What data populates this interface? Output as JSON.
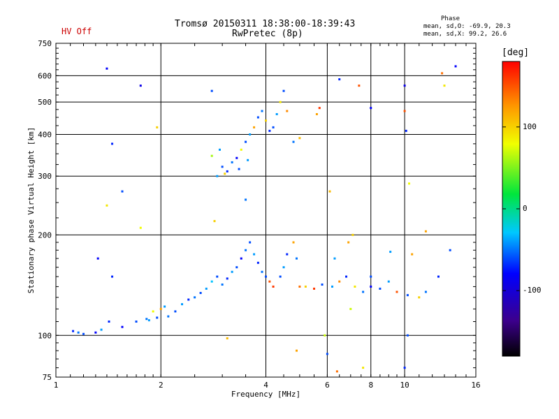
{
  "header": {
    "title_line1": "Tromsø 20150311 18:38:00-18:39:43",
    "title_line2": "RwPretec (8p)",
    "hv_status": "HV Off",
    "phase_title": "Phase",
    "phase_o": "mean, sd,O: -69.9, 20.3",
    "phase_x": "mean, sd,X:  99.2, 26.6"
  },
  "colorbar": {
    "unit": "[deg]",
    "ticks": [
      {
        "label": "100",
        "value": 100
      },
      {
        "label": "0",
        "value": 0
      },
      {
        "label": "-100",
        "value": -100
      }
    ],
    "range": [
      -180,
      180
    ]
  },
  "chart_data": {
    "type": "scatter",
    "xlabel": "Frequency [MHz]",
    "ylabel": "Stationary phase Virtual Height [km]",
    "xscale": "log",
    "yscale": "log",
    "xlim": [
      1,
      16
    ],
    "ylim": [
      75,
      750
    ],
    "xticks": [
      {
        "value": 1,
        "label": "1"
      },
      {
        "value": 2,
        "label": "2"
      },
      {
        "value": 4,
        "label": "4"
      },
      {
        "value": 6,
        "label": "6"
      },
      {
        "value": 8,
        "label": "8"
      },
      {
        "value": 10,
        "label": "10"
      },
      {
        "value": 16,
        "label": "16"
      }
    ],
    "yticks": [
      {
        "value": 75,
        "label": "75"
      },
      {
        "value": 100,
        "label": "100"
      },
      {
        "value": 200,
        "label": "200"
      },
      {
        "value": 300,
        "label": "300"
      },
      {
        "value": 400,
        "label": "400"
      },
      {
        "value": 500,
        "label": "500"
      },
      {
        "value": 600,
        "label": "600"
      },
      {
        "value": 750,
        "label": "750"
      }
    ],
    "xgrid": [
      2,
      4,
      6,
      8,
      10
    ],
    "ygrid": [
      100,
      200,
      300,
      400,
      500,
      600
    ],
    "color_scale": "phase deg, rainbow from black (-180) through blue, cyan, green, yellow to red (180)",
    "points": [
      [
        1.12,
        103,
        -70
      ],
      [
        1.16,
        102,
        -50
      ],
      [
        1.2,
        101,
        -60
      ],
      [
        1.3,
        102,
        -80
      ],
      [
        1.35,
        104,
        -40
      ],
      [
        1.42,
        110,
        -70
      ],
      [
        1.55,
        106,
        -80
      ],
      [
        1.7,
        110,
        -60
      ],
      [
        1.82,
        112,
        -50
      ],
      [
        1.9,
        118,
        80
      ],
      [
        1.85,
        111,
        -40
      ],
      [
        1.95,
        113,
        -60
      ],
      [
        2.0,
        120,
        120
      ],
      [
        2.05,
        122,
        -40
      ],
      [
        2.1,
        114,
        -50
      ],
      [
        2.2,
        118,
        -60
      ],
      [
        2.3,
        124,
        -40
      ],
      [
        2.4,
        128,
        -70
      ],
      [
        2.5,
        130,
        -50
      ],
      [
        2.6,
        134,
        -60
      ],
      [
        2.7,
        138,
        -40
      ],
      [
        2.8,
        145,
        -30
      ],
      [
        2.9,
        150,
        -60
      ],
      [
        3.0,
        142,
        -50
      ],
      [
        3.1,
        148,
        -70
      ],
      [
        3.2,
        155,
        -40
      ],
      [
        3.3,
        160,
        -60
      ],
      [
        3.4,
        170,
        -80
      ],
      [
        3.5,
        180,
        -50
      ],
      [
        3.6,
        190,
        -60
      ],
      [
        3.7,
        175,
        -40
      ],
      [
        3.8,
        165,
        -70
      ],
      [
        3.9,
        155,
        -50
      ],
      [
        4.0,
        150,
        -60
      ],
      [
        4.1,
        145,
        150
      ],
      [
        4.2,
        140,
        160
      ],
      [
        4.4,
        150,
        -60
      ],
      [
        4.5,
        160,
        -40
      ],
      [
        4.6,
        175,
        -70
      ],
      [
        4.8,
        190,
        120
      ],
      [
        4.9,
        170,
        -50
      ],
      [
        5.0,
        140,
        140
      ],
      [
        5.2,
        140,
        100
      ],
      [
        5.5,
        138,
        160
      ],
      [
        5.8,
        142,
        -60
      ],
      [
        6.2,
        140,
        -40
      ],
      [
        6.5,
        145,
        130
      ],
      [
        6.8,
        150,
        -70
      ],
      [
        7.2,
        140,
        90
      ],
      [
        7.6,
        135,
        -50
      ],
      [
        8.0,
        140,
        -80
      ],
      [
        8.5,
        138,
        -60
      ],
      [
        9.0,
        145,
        -40
      ],
      [
        9.5,
        135,
        150
      ],
      [
        10.2,
        132,
        -60
      ],
      [
        11.0,
        130,
        100
      ],
      [
        11.5,
        135,
        -50
      ],
      [
        12.5,
        150,
        -70
      ],
      [
        13.5,
        180,
        -60
      ],
      [
        10.5,
        175,
        120
      ],
      [
        2.9,
        300,
        -40
      ],
      [
        3.0,
        320,
        -60
      ],
      [
        3.1,
        310,
        -70
      ],
      [
        3.2,
        330,
        -50
      ],
      [
        3.3,
        340,
        -80
      ],
      [
        3.4,
        360,
        80
      ],
      [
        3.5,
        380,
        -60
      ],
      [
        3.6,
        400,
        -40
      ],
      [
        3.7,
        420,
        120
      ],
      [
        3.8,
        450,
        -60
      ],
      [
        3.9,
        470,
        -50
      ],
      [
        4.0,
        440,
        100
      ],
      [
        4.1,
        410,
        -70
      ],
      [
        4.2,
        420,
        -60
      ],
      [
        4.3,
        460,
        -40
      ],
      [
        4.4,
        500,
        90
      ],
      [
        4.5,
        540,
        -60
      ],
      [
        4.6,
        470,
        130
      ],
      [
        4.8,
        380,
        -50
      ],
      [
        5.0,
        390,
        110
      ],
      [
        2.8,
        345,
        60
      ],
      [
        2.95,
        360,
        -40
      ],
      [
        3.05,
        305,
        100
      ],
      [
        3.35,
        315,
        -60
      ],
      [
        3.55,
        335,
        -40
      ],
      [
        5.6,
        460,
        120
      ],
      [
        5.7,
        480,
        160
      ],
      [
        1.4,
        630,
        -80
      ],
      [
        1.75,
        560,
        -90
      ],
      [
        1.95,
        420,
        100
      ],
      [
        1.45,
        375,
        -70
      ],
      [
        1.55,
        270,
        -60
      ],
      [
        1.4,
        245,
        90
      ],
      [
        1.75,
        210,
        80
      ],
      [
        1.32,
        170,
        -80
      ],
      [
        1.45,
        150,
        -70
      ],
      [
        2.8,
        540,
        -60
      ],
      [
        2.85,
        220,
        100
      ],
      [
        3.5,
        255,
        -50
      ],
      [
        6.1,
        270,
        110
      ],
      [
        6.3,
        170,
        -40
      ],
      [
        7.0,
        120,
        70
      ],
      [
        8.0,
        480,
        -80
      ],
      [
        10.0,
        560,
        -90
      ],
      [
        10.0,
        470,
        150
      ],
      [
        10.1,
        410,
        -70
      ],
      [
        10.3,
        285,
        80
      ],
      [
        10.2,
        100,
        -60
      ],
      [
        11.5,
        205,
        120
      ],
      [
        12.8,
        610,
        140
      ],
      [
        14.0,
        640,
        -80
      ],
      [
        13.0,
        560,
        90
      ],
      [
        6.0,
        88,
        -60
      ],
      [
        7.6,
        80,
        90
      ],
      [
        6.4,
        78,
        140
      ],
      [
        4.9,
        90,
        120
      ],
      [
        3.1,
        98,
        110
      ],
      [
        10.0,
        80,
        -70
      ],
      [
        7.4,
        560,
        150
      ],
      [
        6.5,
        585,
        -70
      ],
      [
        8.0,
        150,
        -60
      ],
      [
        9.1,
        178,
        -40
      ],
      [
        7.1,
        200,
        100
      ],
      [
        6.9,
        190,
        120
      ],
      [
        5.9,
        100,
        70
      ]
    ]
  }
}
